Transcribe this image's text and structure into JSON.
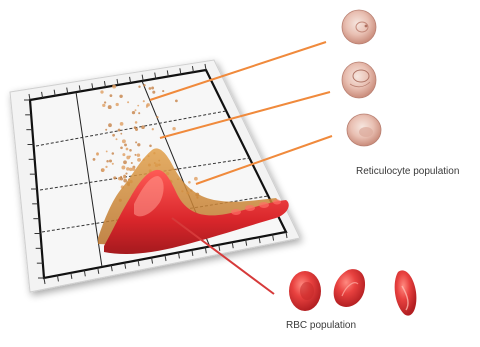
{
  "labels": {
    "reticulocyte": "Reticulocyte population",
    "rbc": "RBC population"
  },
  "colors": {
    "connector_orange": "#f08a3c",
    "connector_red": "#d63a3a",
    "rbc_red": "#e03a3a",
    "reticulocyte_pink": "#e6b3a6",
    "plot_background": "#f2f2f2"
  },
  "populations": {
    "reticulocyte_cell_count": 3,
    "rbc_cell_count": 3
  }
}
